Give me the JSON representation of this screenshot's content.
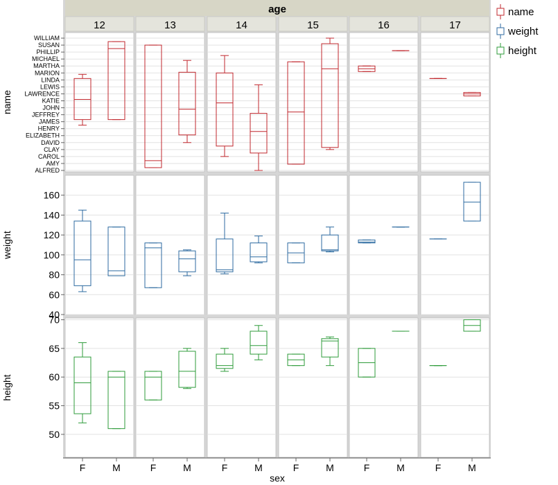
{
  "chart_data": {
    "type": "box",
    "column_facet_label": "age",
    "column_facets": [
      "12",
      "13",
      "14",
      "15",
      "16",
      "17"
    ],
    "x_categories": [
      "F",
      "M"
    ],
    "xlabel": "sex",
    "legend": [
      {
        "name": "name",
        "color": "#c0272d"
      },
      {
        "name": "weight",
        "color": "#2c6aa0"
      },
      {
        "name": "height",
        "color": "#2e9b3a"
      }
    ],
    "rows": [
      {
        "variable": "name",
        "ylabel": "name",
        "color": "#c0272d",
        "scale": "categorical",
        "categories": [
          "ALFRED",
          "AMY",
          "CAROL",
          "CLAY",
          "DAVID",
          "ELIZABETH",
          "HENRY",
          "JAMES",
          "JEFFREY",
          "JOHN",
          "KATIE",
          "LAWRENCE",
          "LEWIS",
          "LINDA",
          "MARION",
          "MARTHA",
          "MICHAEL",
          "PHILLIP",
          "SUSAN",
          "WILLIAM"
        ],
        "ylim": [
          -0.2,
          19.8
        ],
        "boxes": [
          {
            "age": "12",
            "sex": "F",
            "min": 6.5,
            "q1": 7.3,
            "median": 10.2,
            "q3": 13.2,
            "max": 13.8
          },
          {
            "age": "12",
            "sex": "M",
            "min": 7.3,
            "q1": 7.3,
            "median": 17.5,
            "q3": 18.5,
            "max": 18.5
          },
          {
            "age": "13",
            "sex": "F",
            "min": 0.4,
            "q1": 0.4,
            "median": 1.4,
            "q3": 18.0,
            "max": 18.0
          },
          {
            "age": "13",
            "sex": "M",
            "min": 4.0,
            "q1": 5.1,
            "median": 8.8,
            "q3": 14.1,
            "max": 15.8
          },
          {
            "age": "14",
            "sex": "F",
            "min": 2.0,
            "q1": 3.5,
            "median": 9.7,
            "q3": 14.0,
            "max": 16.5
          },
          {
            "age": "14",
            "sex": "M",
            "min": 0.0,
            "q1": 2.5,
            "median": 5.6,
            "q3": 8.2,
            "max": 12.3
          },
          {
            "age": "15",
            "sex": "F",
            "min": 0.9,
            "q1": 0.9,
            "median": 8.4,
            "q3": 15.6,
            "max": 15.6
          },
          {
            "age": "15",
            "sex": "M",
            "min": 3.0,
            "q1": 3.3,
            "median": 14.6,
            "q3": 18.2,
            "max": 19.0
          },
          {
            "age": "16",
            "sex": "F",
            "min": 14.2,
            "q1": 14.2,
            "median": 14.6,
            "q3": 15.0,
            "max": 15.0
          },
          {
            "age": "16",
            "sex": "M",
            "min": 17.2,
            "q1": 17.2,
            "median": 17.2,
            "q3": 17.2,
            "max": 17.2
          },
          {
            "age": "17",
            "sex": "F",
            "min": 13.2,
            "q1": 13.2,
            "median": 13.2,
            "q3": 13.2,
            "max": 13.2
          },
          {
            "age": "17",
            "sex": "M",
            "min": 10.7,
            "q1": 10.7,
            "median": 11.0,
            "q3": 11.2,
            "max": 11.2
          }
        ]
      },
      {
        "variable": "weight",
        "ylabel": "weight",
        "color": "#2c6aa0",
        "scale": "linear",
        "ticks": [
          40,
          60,
          80,
          100,
          120,
          140,
          160
        ],
        "ylim": [
          40,
          180
        ],
        "boxes": [
          {
            "age": "12",
            "sex": "F",
            "min": 63,
            "q1": 69,
            "median": 95,
            "q3": 134,
            "max": 145
          },
          {
            "age": "12",
            "sex": "M",
            "min": 79,
            "q1": 79,
            "median": 84,
            "q3": 128,
            "max": 128
          },
          {
            "age": "13",
            "sex": "F",
            "min": 67,
            "q1": 67,
            "median": 107,
            "q3": 112,
            "max": 112
          },
          {
            "age": "13",
            "sex": "M",
            "min": 79,
            "q1": 83,
            "median": 96,
            "q3": 104,
            "max": 105
          },
          {
            "age": "14",
            "sex": "F",
            "min": 81,
            "q1": 83,
            "median": 85,
            "q3": 116,
            "max": 142
          },
          {
            "age": "14",
            "sex": "M",
            "min": 92,
            "q1": 93,
            "median": 98,
            "q3": 112,
            "max": 119
          },
          {
            "age": "15",
            "sex": "F",
            "min": 92,
            "q1": 92,
            "median": 102,
            "q3": 112,
            "max": 112
          },
          {
            "age": "15",
            "sex": "M",
            "min": 103,
            "q1": 104,
            "median": 105,
            "q3": 120,
            "max": 128
          },
          {
            "age": "16",
            "sex": "F",
            "min": 112,
            "q1": 112,
            "median": 113,
            "q3": 115,
            "max": 115
          },
          {
            "age": "16",
            "sex": "M",
            "min": 128,
            "q1": 128,
            "median": 128,
            "q3": 128,
            "max": 128
          },
          {
            "age": "17",
            "sex": "F",
            "min": 116,
            "q1": 116,
            "median": 116,
            "q3": 116,
            "max": 116
          },
          {
            "age": "17",
            "sex": "M",
            "min": 134,
            "q1": 134,
            "median": 153,
            "q3": 173,
            "max": 173
          }
        ]
      },
      {
        "variable": "height",
        "ylabel": "height",
        "color": "#2e9b3a",
        "scale": "linear",
        "ticks": [
          50,
          55,
          60,
          65,
          70
        ],
        "ylim": [
          46,
          70.3
        ],
        "boxes": [
          {
            "age": "12",
            "sex": "F",
            "min": 52,
            "q1": 53.6,
            "median": 59,
            "q3": 63.5,
            "max": 66
          },
          {
            "age": "12",
            "sex": "M",
            "min": 51,
            "q1": 51,
            "median": 60,
            "q3": 61,
            "max": 61
          },
          {
            "age": "13",
            "sex": "F",
            "min": 56,
            "q1": 56,
            "median": 60,
            "q3": 61,
            "max": 61
          },
          {
            "age": "13",
            "sex": "M",
            "min": 58,
            "q1": 58.2,
            "median": 61,
            "q3": 64.5,
            "max": 65
          },
          {
            "age": "14",
            "sex": "F",
            "min": 61,
            "q1": 61.5,
            "median": 62,
            "q3": 64,
            "max": 65
          },
          {
            "age": "14",
            "sex": "M",
            "min": 63,
            "q1": 64,
            "median": 65.5,
            "q3": 68,
            "max": 69
          },
          {
            "age": "15",
            "sex": "F",
            "min": 62,
            "q1": 62,
            "median": 63,
            "q3": 64,
            "max": 64
          },
          {
            "age": "15",
            "sex": "M",
            "min": 62,
            "q1": 63.5,
            "median": 66.3,
            "q3": 66.7,
            "max": 67
          },
          {
            "age": "16",
            "sex": "F",
            "min": 60,
            "q1": 60,
            "median": 62.5,
            "q3": 65,
            "max": 65
          },
          {
            "age": "16",
            "sex": "M",
            "min": 68,
            "q1": 68,
            "median": 68,
            "q3": 68,
            "max": 68
          },
          {
            "age": "17",
            "sex": "F",
            "min": 62,
            "q1": 62,
            "median": 62,
            "q3": 62,
            "max": 62
          },
          {
            "age": "17",
            "sex": "M",
            "min": 68,
            "q1": 68,
            "median": 69,
            "q3": 70,
            "max": 70
          }
        ]
      }
    ],
    "grid": true,
    "legend_position": "right"
  }
}
